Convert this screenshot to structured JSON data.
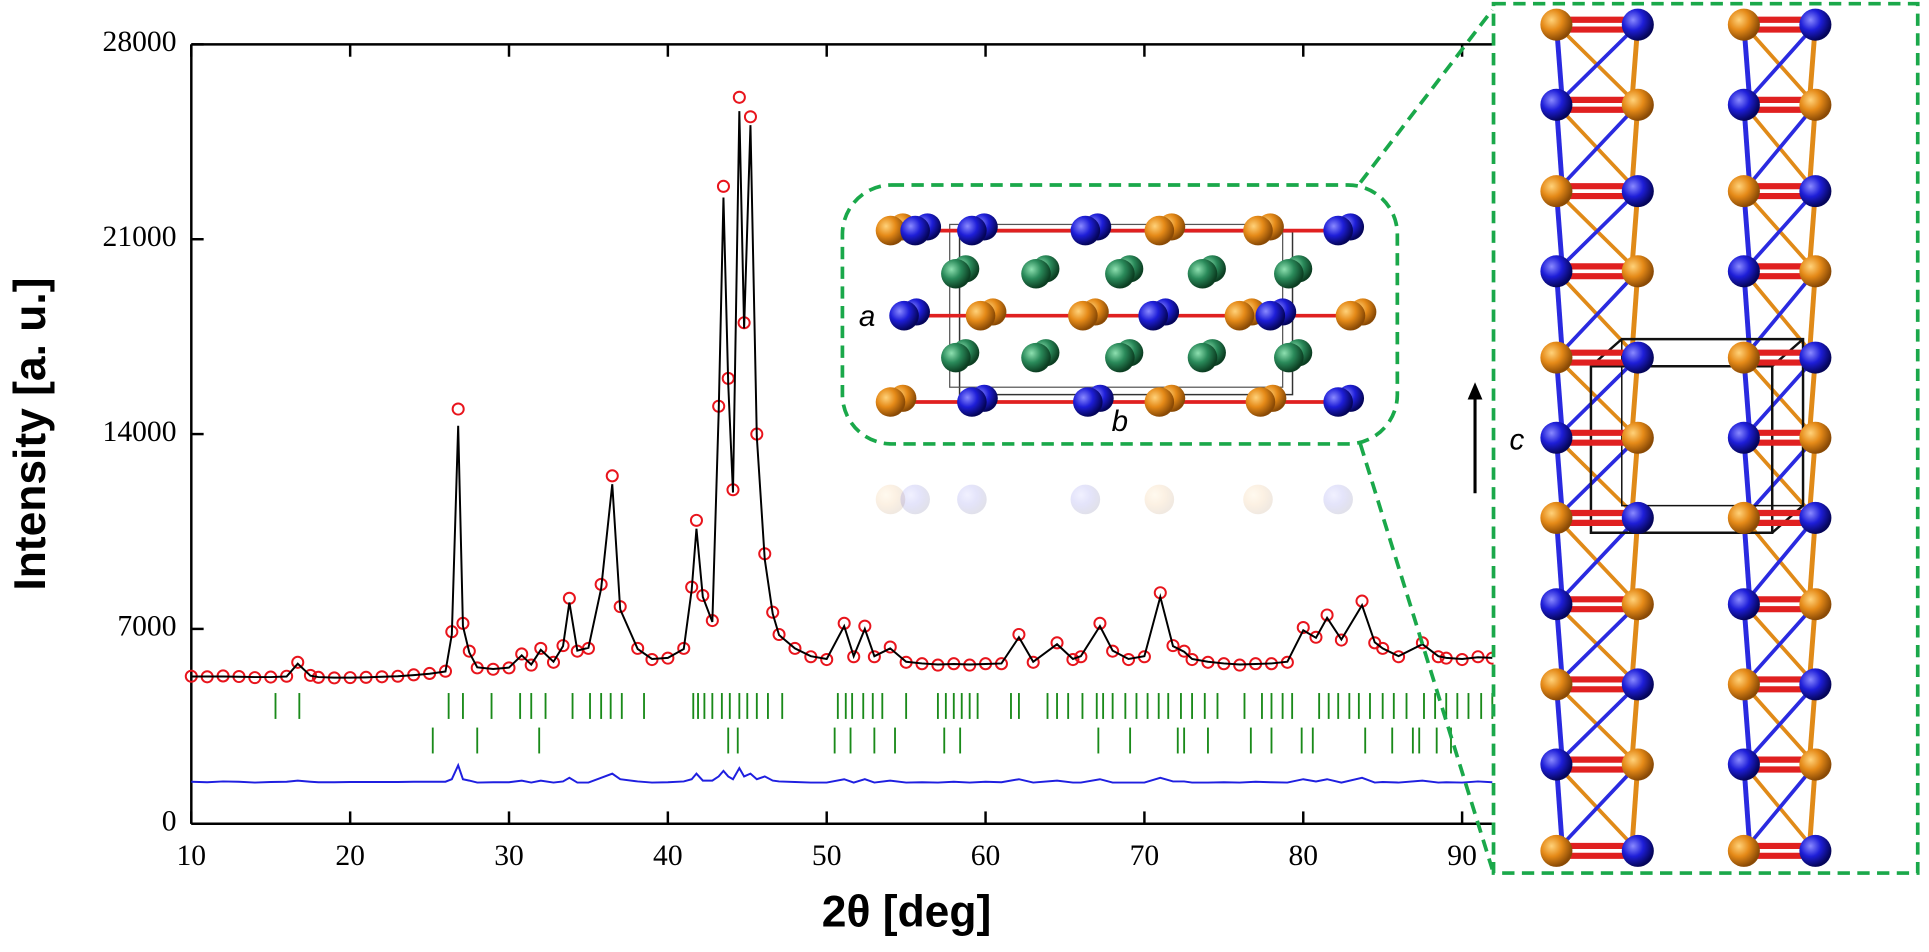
{
  "chart_data": {
    "type": "line",
    "xlabel": "2θ [deg]",
    "ylabel": "Intensity [a. u.]",
    "x": [
      10,
      11,
      12,
      13,
      14,
      15,
      16,
      16.7,
      17.5,
      18,
      19,
      20,
      21,
      22,
      23,
      24,
      25,
      26,
      26.4,
      26.8,
      27.1,
      27.5,
      28,
      29,
      30,
      30.8,
      31.4,
      32,
      32.8,
      33.4,
      33.8,
      34.3,
      35,
      35.8,
      36.5,
      37,
      38.1,
      39,
      40,
      41,
      41.5,
      41.8,
      42.2,
      42.8,
      43.2,
      43.5,
      43.8,
      44.1,
      44.5,
      44.8,
      45.2,
      45.6,
      46.1,
      46.6,
      47,
      48,
      49,
      50,
      51.1,
      51.7,
      52.4,
      53,
      54,
      55,
      56,
      57,
      58,
      59,
      60,
      61,
      62.1,
      63,
      64.5,
      65.5,
      66,
      67.2,
      68,
      69,
      70,
      71,
      71.8,
      72.5,
      73,
      74,
      75,
      76,
      77,
      78,
      79,
      80,
      80.8,
      81.5,
      82.4,
      83.7,
      84.5,
      85,
      86,
      87.5,
      88.5,
      89,
      90,
      91,
      91.9
    ],
    "xlim": [
      10,
      91.9
    ],
    "ylim": [
      0,
      28000
    ],
    "xticks": [
      10,
      20,
      30,
      40,
      50,
      60,
      70,
      80,
      90
    ],
    "yticks": [
      0,
      7000,
      14000,
      21000,
      28000
    ],
    "series": [
      {
        "color": "#e8141c",
        "marker": "circle",
        "values": [
          5300,
          5280,
          5310,
          5290,
          5250,
          5270,
          5300,
          5800,
          5330,
          5260,
          5240,
          5250,
          5260,
          5280,
          5300,
          5350,
          5400,
          5480,
          6900,
          14900,
          7200,
          6200,
          5600,
          5550,
          5600,
          6100,
          5700,
          6300,
          5800,
          6400,
          8100,
          6200,
          6300,
          8600,
          12500,
          7800,
          6300,
          5900,
          5950,
          6300,
          8500,
          10900,
          8200,
          7300,
          15000,
          22900,
          16000,
          12000,
          26100,
          18000,
          25400,
          14000,
          9700,
          7600,
          6800,
          6300,
          6000,
          5900,
          7200,
          6000,
          7100,
          6000,
          6350,
          5800,
          5750,
          5700,
          5750,
          5700,
          5750,
          5750,
          6800,
          5800,
          6500,
          5900,
          6000,
          7200,
          6200,
          5900,
          6000,
          8300,
          6400,
          6200,
          5900,
          5800,
          5750,
          5700,
          5750,
          5750,
          5800,
          7050,
          6700,
          7500,
          6600,
          8000,
          6500,
          6300,
          6000,
          6500,
          6000,
          5950,
          5900,
          6000,
          5950
        ]
      },
      {
        "color": "#000000",
        "values": [
          5290,
          5290,
          5290,
          5280,
          5270,
          5270,
          5290,
          5750,
          5320,
          5270,
          5250,
          5250,
          5260,
          5280,
          5300,
          5340,
          5390,
          5470,
          6800,
          14300,
          7100,
          6150,
          5620,
          5560,
          5610,
          6050,
          5720,
          6250,
          5820,
          6380,
          7950,
          6220,
          6320,
          8450,
          12200,
          7700,
          6280,
          5920,
          5960,
          6280,
          8400,
          10600,
          8150,
          7250,
          14800,
          22500,
          15800,
          11900,
          25600,
          17800,
          25100,
          13900,
          9500,
          7550,
          6780,
          6300,
          6020,
          5920,
          7100,
          6020,
          7000,
          6020,
          6300,
          5820,
          5760,
          5720,
          5740,
          5720,
          5740,
          5760,
          6700,
          5820,
          6450,
          5920,
          6020,
          7100,
          6220,
          5920,
          6020,
          8150,
          6380,
          6180,
          5920,
          5820,
          5760,
          5720,
          5740,
          5760,
          5820,
          6950,
          6680,
          7400,
          6620,
          7850,
          6520,
          6300,
          6020,
          6450,
          6020,
          5960,
          5920,
          5980,
          5960
        ]
      },
      {
        "color": "#1f1fe0",
        "values": [
          1510,
          1490,
          1520,
          1510,
          1480,
          1500,
          1510,
          1550,
          1510,
          1490,
          1490,
          1500,
          1500,
          1500,
          1500,
          1510,
          1510,
          1510,
          1600,
          2100,
          1600,
          1550,
          1480,
          1490,
          1490,
          1550,
          1480,
          1550,
          1480,
          1520,
          1650,
          1480,
          1480,
          1650,
          1800,
          1600,
          1520,
          1480,
          1490,
          1520,
          1600,
          1800,
          1550,
          1550,
          1700,
          1900,
          1700,
          1600,
          2000,
          1700,
          1800,
          1600,
          1700,
          1550,
          1520,
          1500,
          1480,
          1480,
          1600,
          1480,
          1600,
          1480,
          1550,
          1480,
          1490,
          1480,
          1510,
          1480,
          1510,
          1490,
          1600,
          1480,
          1550,
          1480,
          1480,
          1600,
          1480,
          1480,
          1480,
          1650,
          1520,
          1520,
          1480,
          1480,
          1490,
          1480,
          1510,
          1490,
          1480,
          1600,
          1520,
          1600,
          1480,
          1650,
          1480,
          1500,
          1480,
          1550,
          1480,
          1490,
          1480,
          1520,
          1490
        ]
      }
    ],
    "reflections": [
      {
        "color": "#1a8a1a",
        "positions": [
          15.3,
          16.8,
          26.2,
          27.1,
          28.9,
          30.7,
          31.4,
          32.3,
          34.0,
          35.1,
          35.8,
          36.4,
          37.1,
          38.5,
          41.6,
          41.9,
          42.3,
          42.8,
          43.4,
          43.9,
          44.5,
          45.0,
          45.6,
          46.3,
          47.2,
          50.7,
          51.2,
          51.6,
          52.3,
          52.9,
          53.5,
          55.0,
          57.0,
          57.5,
          58.0,
          58.5,
          59.0,
          59.5,
          61.6,
          62.1,
          63.9,
          64.5,
          65.2,
          66.1,
          67.0,
          67.4,
          68.0,
          68.8,
          69.5,
          70.2,
          70.9,
          71.5,
          72.3,
          73.0,
          73.8,
          74.6,
          76.3,
          77.4,
          78.0,
          78.7,
          79.3,
          81.0,
          81.6,
          82.2,
          82.9,
          83.5,
          84.2,
          85.0,
          85.7,
          86.5,
          87.6,
          88.3,
          89.0,
          89.7,
          90.4,
          91.2,
          91.9
        ]
      },
      {
        "color": "#1a8a1a",
        "positions": [
          25.2,
          28.0,
          31.9,
          43.8,
          44.4,
          50.5,
          51.5,
          53.0,
          54.3,
          57.4,
          58.4,
          67.1,
          69.1,
          72.1,
          72.5,
          74.0,
          76.7,
          78.0,
          79.9,
          80.6,
          83.9,
          85.6,
          86.9,
          87.3,
          88.4,
          89.3
        ]
      }
    ],
    "annotations": [
      "a",
      "b",
      "c"
    ]
  }
}
